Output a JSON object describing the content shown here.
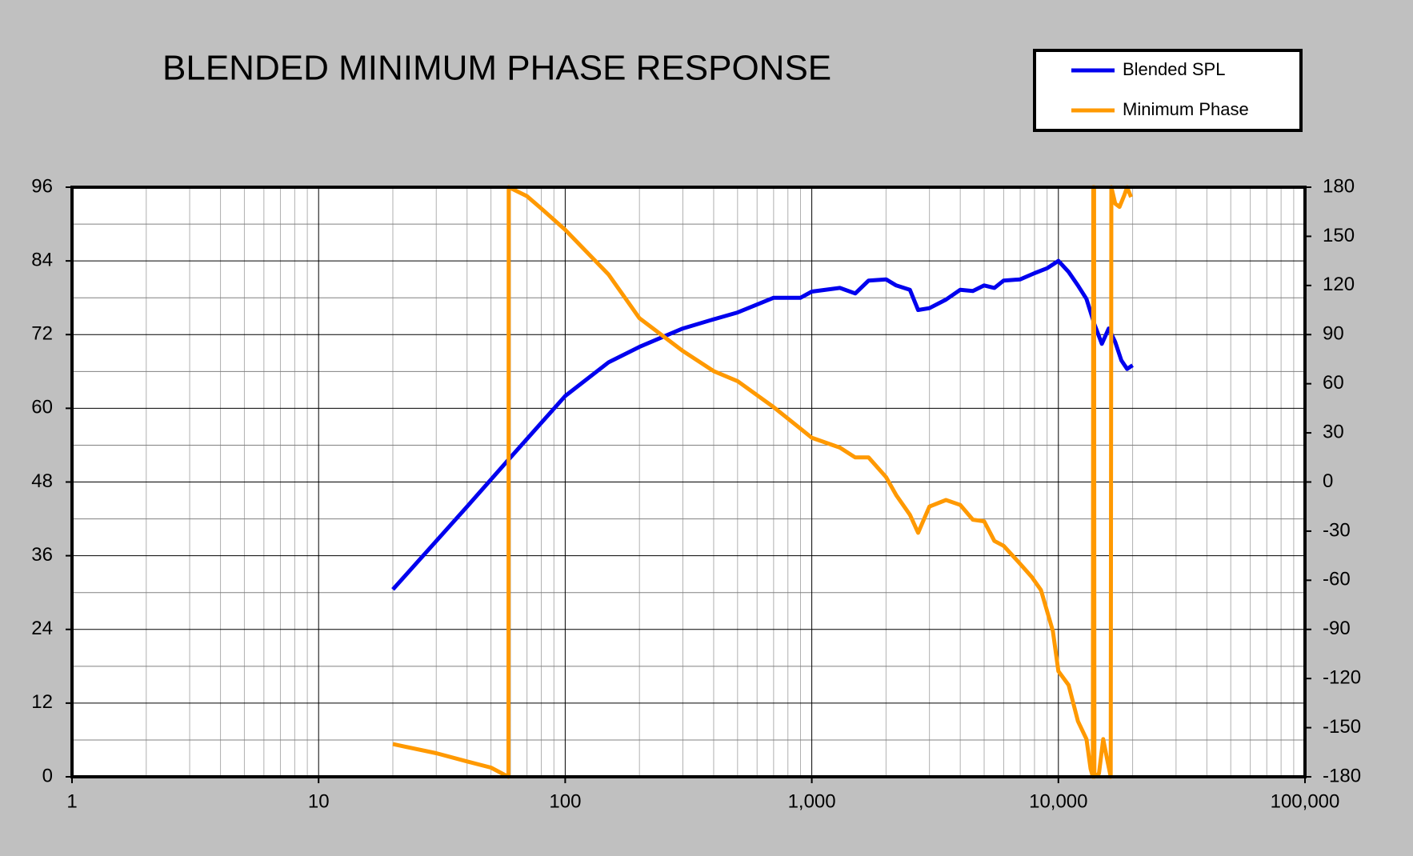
{
  "chart_data": {
    "type": "line",
    "title": "BLENDED MINIMUM PHASE RESPONSE",
    "xlog": true,
    "grid": true,
    "legend": "top-right",
    "xlim": [
      1,
      100000
    ],
    "xticks": [
      1,
      10,
      100,
      {
        "value": 1000,
        "label": "1,000"
      },
      {
        "value": 10000,
        "label": "10,000"
      },
      {
        "value": 100000,
        "label": "100,000"
      }
    ],
    "ylim": [
      0,
      96
    ],
    "yticks": [
      0,
      12,
      24,
      36,
      48,
      60,
      72,
      84,
      96
    ],
    "y2lim": [
      -180,
      180
    ],
    "y2ticks": [
      -180,
      -150,
      -120,
      -90,
      -60,
      -30,
      0,
      30,
      60,
      90,
      120,
      150,
      180
    ],
    "series": [
      {
        "name": "Blended SPL",
        "color": "#0000ee",
        "x": [
          20,
          40,
          60,
          100,
          150,
          200,
          300,
          400,
          500,
          700,
          900,
          1000,
          1300,
          1500,
          1700,
          2000,
          2200,
          2500,
          2700,
          3000,
          3500,
          4000,
          4500,
          5000,
          5500,
          6000,
          7000,
          8000,
          9000,
          10000,
          11000,
          12000,
          13000,
          14000,
          15000,
          16000,
          17000,
          18000,
          19000,
          20000
        ],
        "values": [
          30.5,
          44,
          52,
          62,
          67.5,
          70,
          73,
          74.5,
          75.6,
          78,
          78,
          79,
          79.6,
          78.7,
          80.8,
          81,
          80,
          79.3,
          76,
          76.3,
          77.7,
          79.3,
          79.1,
          80,
          79.6,
          80.8,
          81,
          82,
          82.8,
          84,
          82.2,
          80,
          77.8,
          73.7,
          70.5,
          73,
          70.8,
          67.8,
          66.4,
          67
        ]
      },
      {
        "name": "Minimum Phase",
        "color": "#ff9900",
        "axis": "y2",
        "x": [
          20,
          30,
          40,
          50,
          58.9,
          59,
          70,
          80,
          100,
          150,
          200,
          300,
          400,
          500,
          700,
          1000,
          1300,
          1500,
          1700,
          2000,
          2200,
          2500,
          2700,
          3000,
          3500,
          4000,
          4500,
          5000,
          5500,
          6000,
          7000,
          7800,
          8500,
          9500,
          10000,
          11000,
          12000,
          13000,
          13500,
          13800,
          13850,
          13950,
          14000,
          14600,
          15200,
          15800,
          16300,
          16400,
          17000,
          17700,
          18500,
          19000,
          19700
        ],
        "values": [
          -160,
          -165.6,
          -170.6,
          -174.4,
          -180,
          180,
          174.5,
          167,
          154,
          126.6,
          100,
          80,
          67.7,
          61.6,
          45.7,
          27,
          21,
          15,
          15,
          3,
          -8,
          -20,
          -31,
          -15,
          -11,
          -14,
          -23,
          -24,
          -36,
          -39,
          -50,
          -58,
          -66,
          -91,
          -115.5,
          -124,
          -146,
          -157,
          -175,
          -180,
          180,
          180,
          -180,
          -178,
          -157,
          -170,
          -180,
          180,
          170,
          168,
          175,
          180,
          174
        ]
      }
    ]
  }
}
